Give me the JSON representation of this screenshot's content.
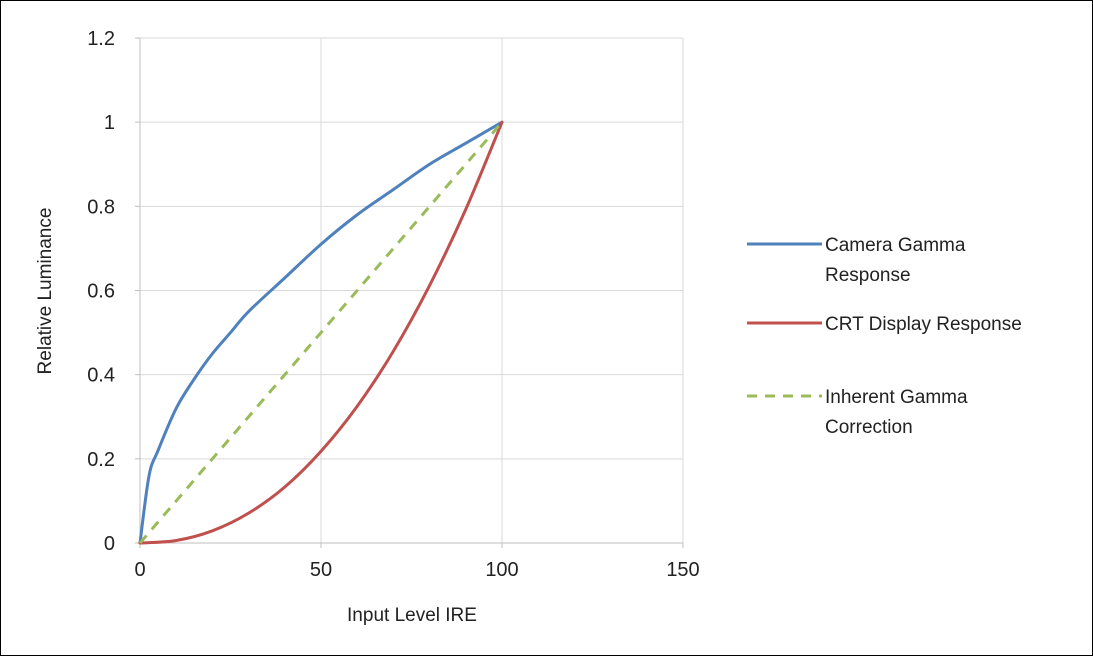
{
  "chart_data": {
    "type": "line",
    "title": "",
    "xlabel": "Input Level IRE",
    "ylabel": "Relative Luminance",
    "xlim": [
      0,
      150
    ],
    "ylim": [
      0,
      1.2
    ],
    "x_ticks": [
      0,
      50,
      100,
      150
    ],
    "y_ticks": [
      0,
      0.2,
      0.4,
      0.6,
      0.8,
      1,
      1.2
    ],
    "x_tick_labels": [
      "0",
      "50",
      "100",
      "150"
    ],
    "y_tick_labels": [
      "0",
      "0.2",
      "0.4",
      "0.6",
      "0.8",
      "1",
      "1.2"
    ],
    "grid": "vertical and horizontal major gridlines",
    "legend_position": "right",
    "series": [
      {
        "name": "Camera Gamma Response",
        "color": "#4f81bd",
        "dash": "solid",
        "x": [
          0,
          2.5,
          5,
          10,
          15,
          20,
          25,
          30,
          40,
          50,
          60,
          70,
          80,
          90,
          100
        ],
        "y": [
          0,
          0.16,
          0.22,
          0.32,
          0.39,
          0.45,
          0.5,
          0.55,
          0.63,
          0.71,
          0.78,
          0.84,
          0.9,
          0.95,
          1.0
        ]
      },
      {
        "name": "CRT Display Response",
        "color": "#c0504d",
        "dash": "solid",
        "x": [
          0,
          10,
          20,
          30,
          40,
          50,
          60,
          70,
          80,
          90,
          100
        ],
        "y": [
          0,
          0.006,
          0.029,
          0.071,
          0.133,
          0.218,
          0.325,
          0.456,
          0.612,
          0.793,
          1.0
        ]
      },
      {
        "name": "Inherent Gamma Correction",
        "color": "#9bbb59",
        "dash": "dashed",
        "x": [
          0,
          100
        ],
        "y": [
          0,
          1.0
        ]
      }
    ]
  },
  "legend": {
    "items": [
      {
        "lines": [
          "Camera Gamma",
          "Response"
        ],
        "color": "#4f81bd",
        "dash": "solid"
      },
      {
        "lines": [
          "CRT Display Response"
        ],
        "color": "#c0504d",
        "dash": "solid"
      },
      {
        "lines": [
          "Inherent Gamma",
          "Correction"
        ],
        "color": "#9bbb59",
        "dash": "dashed"
      }
    ]
  }
}
